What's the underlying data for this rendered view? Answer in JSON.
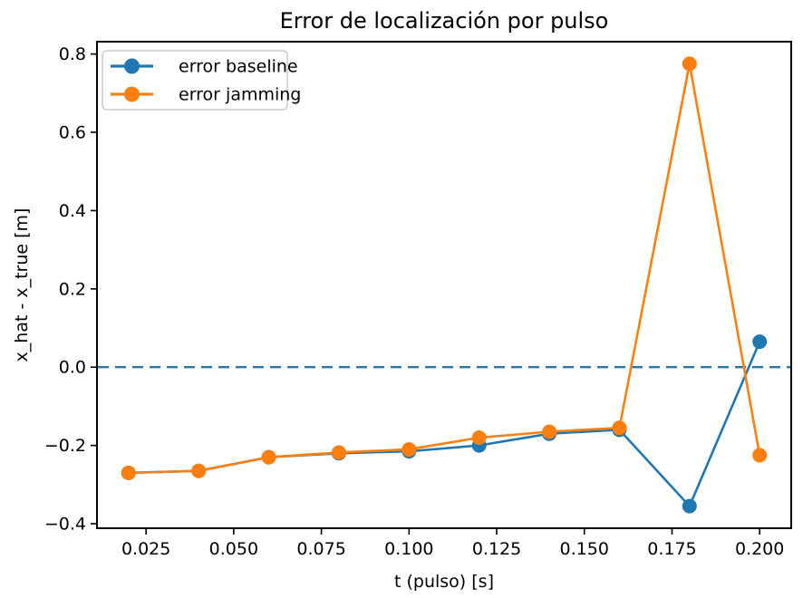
{
  "figure": {
    "background": "#ffffff",
    "frame_color": "#000000"
  },
  "chart_data": {
    "type": "line",
    "title": "Error de localización por pulso",
    "xlabel": "t (pulso) [s]",
    "ylabel": "x_hat - x_true [m]",
    "x": [
      0.02,
      0.04,
      0.06,
      0.08,
      0.1,
      0.12,
      0.14,
      0.16,
      0.18,
      0.2
    ],
    "series": [
      {
        "name": "error baseline",
        "color": "#1f77b4",
        "marker": "circle",
        "values": [
          -0.27,
          -0.265,
          -0.23,
          -0.22,
          -0.215,
          -0.2,
          -0.17,
          -0.16,
          -0.355,
          0.065
        ]
      },
      {
        "name": "error jamming",
        "color": "#ff7f0e",
        "marker": "circle",
        "values": [
          -0.27,
          -0.265,
          -0.23,
          -0.218,
          -0.21,
          -0.18,
          -0.165,
          -0.155,
          0.775,
          -0.225
        ]
      }
    ],
    "zero_line": {
      "y": 0.0,
      "color": "#1f77b4",
      "style": "dashed"
    },
    "xlim": [
      0.011,
      0.209
    ],
    "ylim": [
      -0.4115,
      0.8315
    ],
    "xticks": [
      0.025,
      0.05,
      0.075,
      0.1,
      0.125,
      0.15,
      0.175,
      0.2
    ],
    "xtick_labels": [
      "0.025",
      "0.050",
      "0.075",
      "0.100",
      "0.125",
      "0.150",
      "0.175",
      "0.200"
    ],
    "yticks": [
      -0.4,
      -0.2,
      0.0,
      0.2,
      0.4,
      0.6,
      0.8
    ],
    "ytick_labels": [
      "−0.4",
      "−0.2",
      "0.0",
      "0.2",
      "0.4",
      "0.6",
      "0.8"
    ],
    "legend": {
      "position": "upper-left",
      "entries": [
        "error baseline",
        "error jamming"
      ]
    },
    "grid": false
  }
}
